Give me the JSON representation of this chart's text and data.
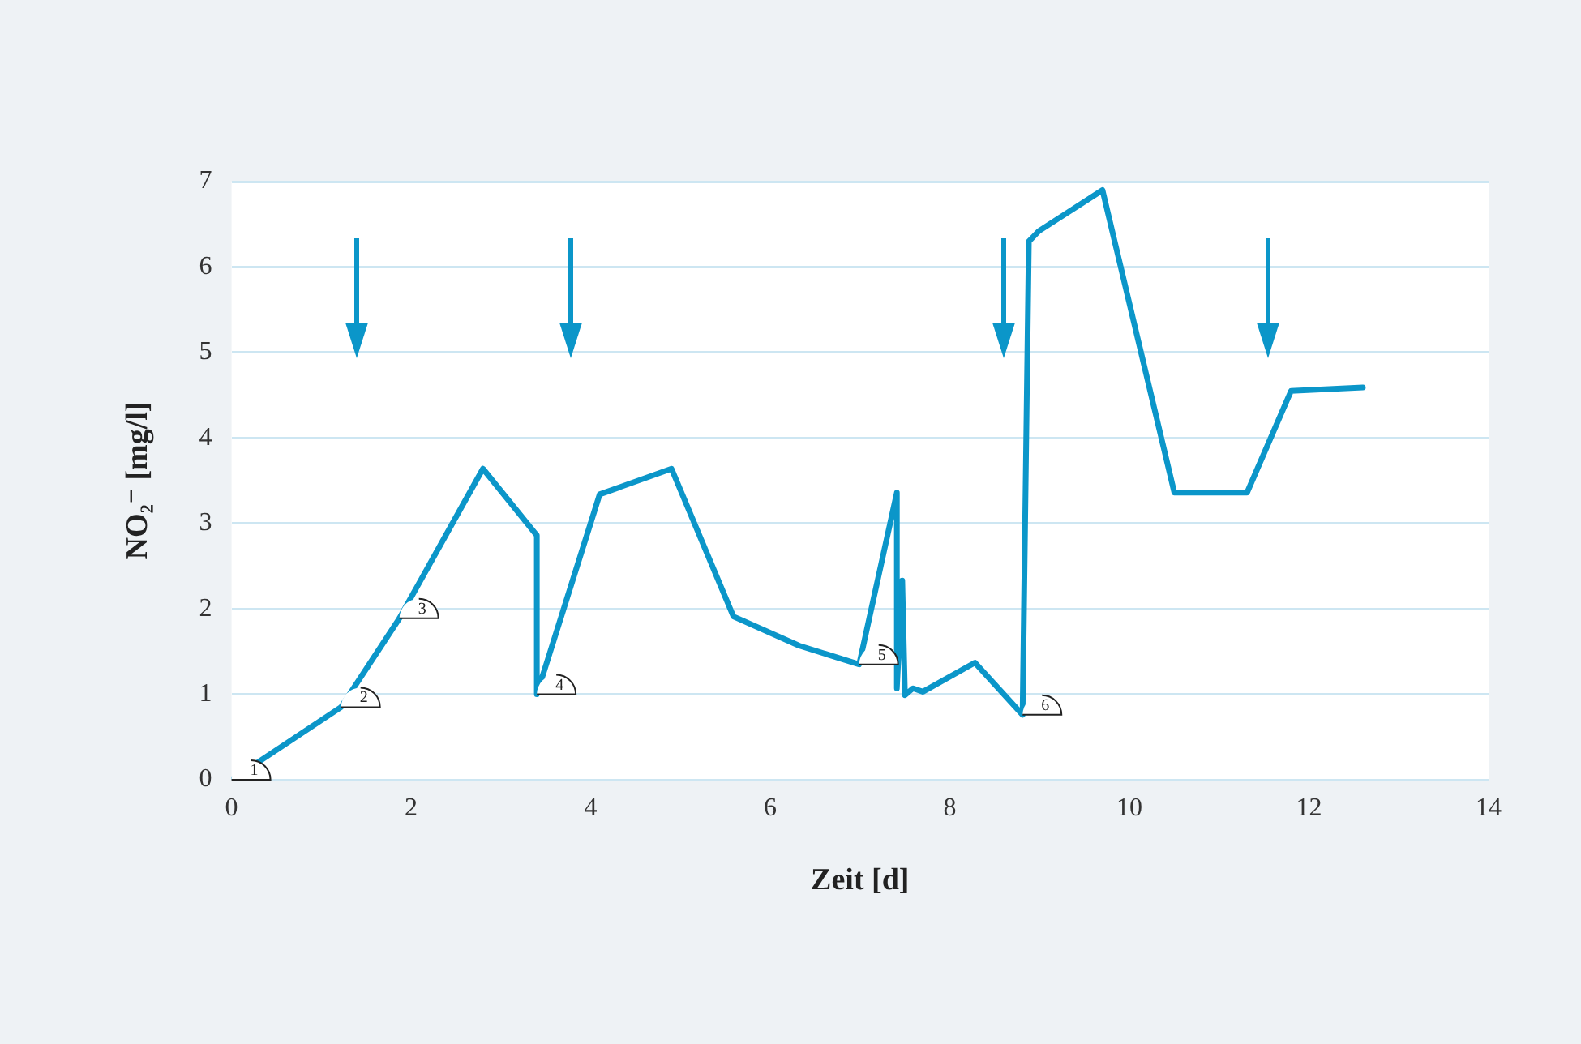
{
  "chart_data": {
    "type": "line",
    "xlabel": "Zeit [d]",
    "ylabel": "NO₂⁻ [mg/l]",
    "xlim": [
      0,
      14
    ],
    "xticks": [
      0,
      2,
      4,
      6,
      8,
      10,
      12,
      14
    ],
    "ylim": [
      0,
      7
    ],
    "yticks": [
      0,
      1,
      2,
      3,
      4,
      5,
      6,
      7
    ],
    "grid": "y",
    "legend": false,
    "marker": "none",
    "line_style": "solid",
    "series": [
      {
        "color": "#0b96c9",
        "x": [
          0,
          1.22,
          1.87,
          2.8,
          3.4,
          3.4,
          4.1,
          4.9,
          5.59,
          6.32,
          6.99,
          7.41,
          7.41,
          7.47,
          7.5,
          7.59,
          7.7,
          8.28,
          8.81,
          8.88,
          8.99,
          9.7,
          10.5,
          11.31,
          11.8,
          12.6
        ],
        "values": [
          0,
          0.85,
          1.89,
          3.64,
          2.86,
          1.0,
          3.34,
          3.64,
          1.91,
          1.57,
          1.35,
          3.36,
          1.07,
          2.33,
          0.99,
          1.07,
          1.03,
          1.37,
          0.76,
          6.3,
          6.42,
          6.9,
          3.36,
          3.36,
          4.55,
          4.59
        ]
      }
    ],
    "annotations": [
      {
        "text": "1",
        "x": 0,
        "y": 0
      },
      {
        "text": "2",
        "x": 1.22,
        "y": 0.85
      },
      {
        "text": "3",
        "x": 1.87,
        "y": 1.89
      },
      {
        "text": "4",
        "x": 3.4,
        "y": 1.0
      },
      {
        "text": "5",
        "x": 6.99,
        "y": 1.35
      },
      {
        "text": "6",
        "x": 8.81,
        "y": 0.76
      }
    ]
  }
}
